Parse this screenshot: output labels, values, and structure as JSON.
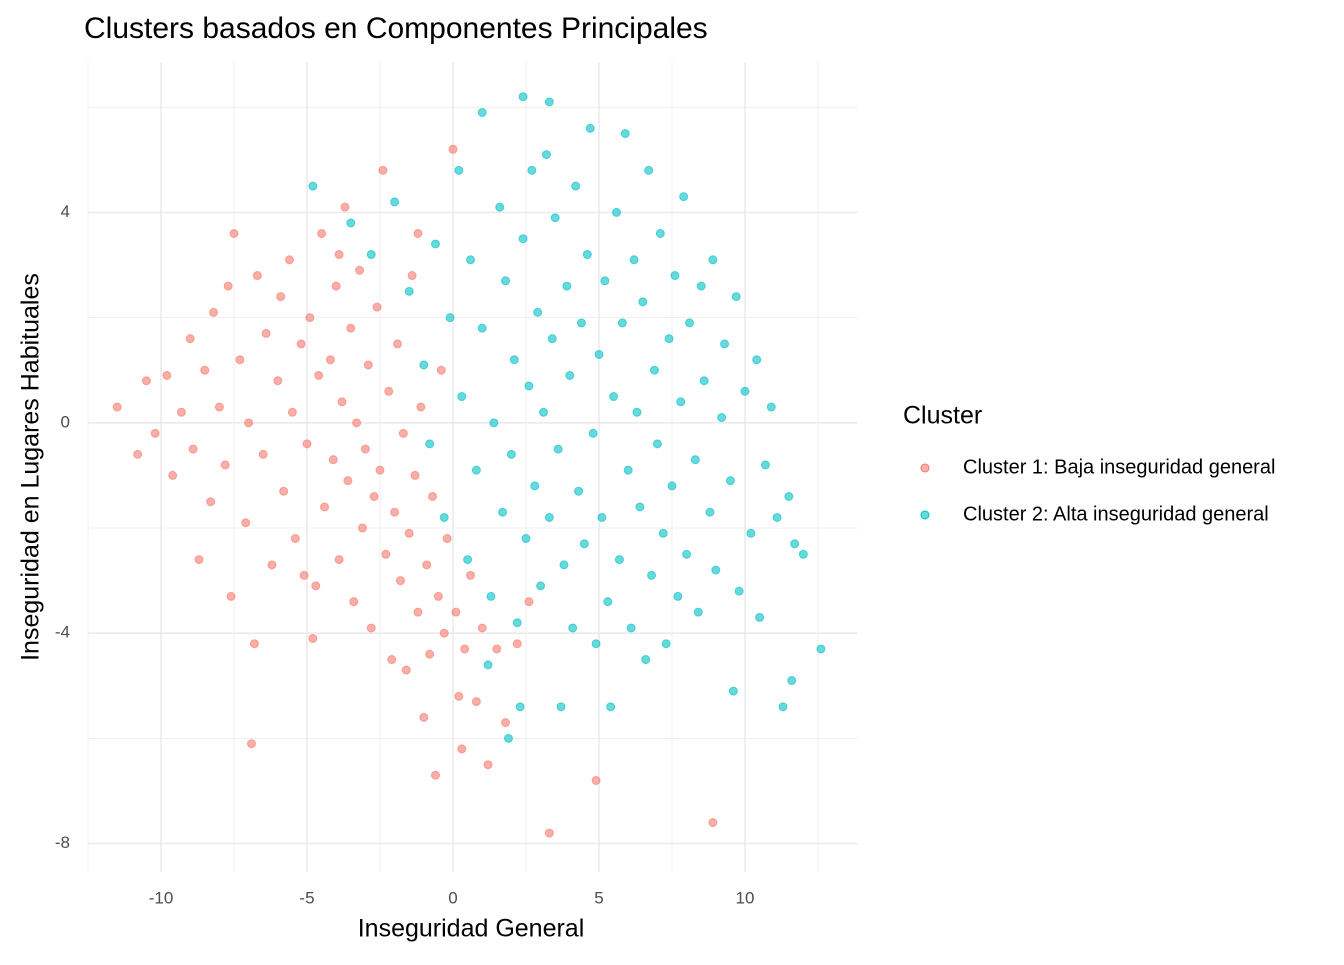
{
  "chart_data": {
    "type": "scatter",
    "title": "Clusters basados en Componentes Principales",
    "x_label": "Inseguridad General",
    "y_label": "Inseguridad en Lugares Habituales",
    "legend_title": "Cluster",
    "legend_position": "right",
    "grid": true,
    "xlim": [
      -12.5,
      13.87
    ],
    "ylim": [
      -8.54,
      6.86
    ],
    "xticks": [
      -10,
      -5,
      0,
      5,
      10
    ],
    "yticks": [
      -8,
      -4,
      0,
      4
    ],
    "x_minor_ticks": [
      -12.5,
      -7.5,
      -2.5,
      2.5,
      7.5,
      12.5
    ],
    "y_minor_ticks": [
      -6,
      -2,
      2,
      6
    ],
    "series": [
      {
        "name": "Cluster 1: Baja inseguridad general",
        "color": "#F8766D",
        "x": [
          -11.5,
          -10.8,
          -10.5,
          -10.2,
          -9.8,
          -9.6,
          -9.3,
          -9.0,
          -8.9,
          -8.7,
          -8.5,
          -8.3,
          -8.2,
          -8.0,
          -7.8,
          -7.7,
          -7.5,
          -7.6,
          -7.3,
          -7.1,
          -7.0,
          -6.9,
          -6.8,
          -6.7,
          -6.5,
          -6.4,
          -6.2,
          -6.0,
          -5.9,
          -5.8,
          -5.6,
          -5.5,
          -5.4,
          -5.2,
          -5.0,
          -4.9,
          -4.8,
          -4.7,
          -4.6,
          -4.5,
          -4.4,
          -4.2,
          -4.1,
          -4.0,
          -3.9,
          -3.8,
          -3.7,
          -3.6,
          -3.5,
          -3.4,
          -3.3,
          -3.2,
          -3.1,
          -3.0,
          -2.9,
          -2.8,
          -2.7,
          -2.6,
          -2.5,
          -2.4,
          -2.3,
          -2.2,
          -2.1,
          -2.0,
          -1.9,
          -1.8,
          -1.7,
          -1.6,
          -1.5,
          -1.4,
          -1.3,
          -1.2,
          -1.1,
          -1.0,
          -0.9,
          -0.8,
          -0.7,
          -0.6,
          -0.5,
          -0.4,
          -0.3,
          -0.2,
          0.0,
          0.1,
          0.2,
          0.3,
          0.4,
          0.6,
          0.8,
          1.0,
          1.2,
          1.5,
          1.8,
          2.2,
          2.6,
          3.3,
          4.9,
          8.9,
          -3.9,
          -5.1,
          -1.2
        ],
        "y": [
          0.3,
          -0.6,
          0.8,
          -0.2,
          0.9,
          -1.0,
          0.2,
          1.6,
          -0.5,
          -2.6,
          1.0,
          -1.5,
          2.1,
          0.3,
          -0.8,
          2.6,
          3.6,
          -3.3,
          1.2,
          -1.9,
          0.0,
          -6.1,
          -4.2,
          2.8,
          -0.6,
          1.7,
          -2.7,
          0.8,
          2.4,
          -1.3,
          3.1,
          0.2,
          -2.2,
          1.5,
          -0.4,
          2.0,
          -4.1,
          -3.1,
          0.9,
          3.6,
          -1.6,
          1.2,
          -0.7,
          2.6,
          -2.6,
          0.4,
          4.1,
          -1.1,
          1.8,
          -3.4,
          0.0,
          2.9,
          -2.0,
          -0.5,
          1.1,
          -3.9,
          -1.4,
          2.2,
          -0.9,
          4.8,
          -2.5,
          0.6,
          -4.5,
          -1.7,
          1.5,
          -3.0,
          -0.2,
          -4.7,
          -2.1,
          2.8,
          -1.0,
          -3.6,
          0.3,
          -5.6,
          -2.7,
          -4.4,
          -1.4,
          -6.7,
          -3.3,
          1.0,
          -4.0,
          -2.2,
          5.2,
          -3.6,
          -5.2,
          -6.2,
          -4.3,
          -2.9,
          -5.3,
          -3.9,
          -6.5,
          -4.3,
          -5.7,
          -4.2,
          -3.4,
          -7.8,
          -6.8,
          -7.6,
          3.2,
          -2.9,
          3.6
        ]
      },
      {
        "name": "Cluster 2: Alta inseguridad general",
        "color": "#00BFC4",
        "x": [
          -4.8,
          -3.5,
          -2.8,
          -2.0,
          -1.5,
          -1.0,
          -0.8,
          -0.6,
          -0.3,
          -0.1,
          0.2,
          0.3,
          0.5,
          0.6,
          0.8,
          1.0,
          1.0,
          1.2,
          1.3,
          1.4,
          1.6,
          1.7,
          1.8,
          1.9,
          2.0,
          2.1,
          2.2,
          2.3,
          2.4,
          2.4,
          2.5,
          2.6,
          2.7,
          2.8,
          2.9,
          3.0,
          3.1,
          3.2,
          3.3,
          3.3,
          3.4,
          3.5,
          3.6,
          3.7,
          3.8,
          3.9,
          4.0,
          4.1,
          4.2,
          4.3,
          4.4,
          4.5,
          4.6,
          4.7,
          4.8,
          4.9,
          5.0,
          5.1,
          5.2,
          5.3,
          5.4,
          5.5,
          5.6,
          5.7,
          5.8,
          5.9,
          6.0,
          6.1,
          6.2,
          6.3,
          6.4,
          6.5,
          6.6,
          6.7,
          6.8,
          6.9,
          7.0,
          7.1,
          7.2,
          7.3,
          7.4,
          7.5,
          7.6,
          7.7,
          7.8,
          7.9,
          8.0,
          8.1,
          8.3,
          8.4,
          8.5,
          8.6,
          8.8,
          8.9,
          9.0,
          9.2,
          9.3,
          9.5,
          9.6,
          9.7,
          9.8,
          10.0,
          10.2,
          10.4,
          10.5,
          10.7,
          10.9,
          11.1,
          11.3,
          11.5,
          11.6,
          11.7,
          12.0,
          12.6
        ],
        "y": [
          4.5,
          3.8,
          3.2,
          4.2,
          2.5,
          1.1,
          -0.4,
          3.4,
          -1.8,
          2.0,
          4.8,
          0.5,
          -2.6,
          3.1,
          -0.9,
          5.9,
          1.8,
          -4.6,
          -3.3,
          0.0,
          4.1,
          -1.7,
          2.7,
          -6.0,
          -0.6,
          1.2,
          -3.8,
          -5.4,
          6.2,
          3.5,
          -2.2,
          0.7,
          4.8,
          -1.2,
          2.1,
          -3.1,
          0.2,
          5.1,
          6.1,
          -1.8,
          1.6,
          3.9,
          -0.5,
          -5.4,
          -2.7,
          2.6,
          0.9,
          -3.9,
          4.5,
          -1.3,
          1.9,
          -2.3,
          3.2,
          5.6,
          -0.2,
          -4.2,
          1.3,
          -1.8,
          2.7,
          -3.4,
          -5.4,
          0.5,
          4.0,
          -2.6,
          1.9,
          5.5,
          -0.9,
          -3.9,
          3.1,
          0.2,
          -1.6,
          2.3,
          -4.5,
          4.8,
          -2.9,
          1.0,
          -0.4,
          3.6,
          -2.1,
          -4.2,
          1.6,
          -1.2,
          2.8,
          -3.3,
          0.4,
          4.3,
          -2.5,
          1.9,
          -0.7,
          -3.6,
          2.6,
          0.8,
          -1.7,
          3.1,
          -2.8,
          0.1,
          1.5,
          -1.1,
          -5.1,
          2.4,
          -3.2,
          0.6,
          -2.1,
          1.2,
          -3.7,
          -0.8,
          0.3,
          -1.8,
          -5.4,
          -1.4,
          -4.9,
          -2.3,
          -2.5,
          -4.3
        ]
      }
    ]
  }
}
